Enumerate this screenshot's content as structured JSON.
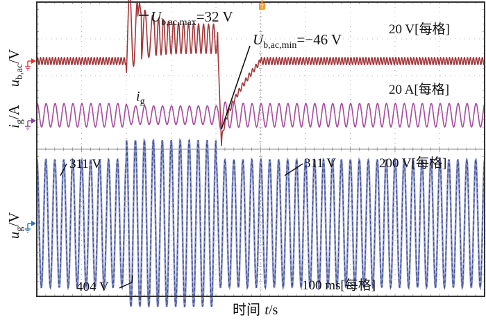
{
  "chart_data": {
    "type": "line",
    "title": "",
    "xlabel": "时间 t/s",
    "time_scale": "100 ms[每格]",
    "x_divisions": 10,
    "y_divisions": 8,
    "grid": true,
    "trigger_marker": "T",
    "colors": {
      "u_b_ac": "#a3373a",
      "i_g": "#a54c9c",
      "u_g": "#3f4d94",
      "u_b_ac_marker": "#e8322b",
      "i_g_marker": "#8a3f99",
      "u_g_marker": "#2a73b8",
      "trigger": "#f0a030",
      "frame": "#333333",
      "grid": "#9a9a9a"
    },
    "series": [
      {
        "name": "u_b,ac",
        "ylabel": "u_b,ac/V",
        "ylabel_main": "u",
        "ylabel_sub": "b,ac",
        "ylabel_unit": "/V",
        "scale": "20 V[每格]",
        "steady_ripple_V": 2,
        "disturbance_start_div": 2.0,
        "disturbance_end_div": 4.0,
        "recovery_end_div": 5.0,
        "max_V": 32,
        "min_V": -46
      },
      {
        "name": "i_g",
        "ylabel": "i_g/A",
        "ylabel_main": "i",
        "ylabel_sub": "g",
        "ylabel_unit": "/A",
        "scale": "20 A[每格]",
        "trace_label_main": "i",
        "trace_label_sub": "g",
        "cycles_shown": 50
      },
      {
        "name": "u_g",
        "ylabel": "u_g/V",
        "ylabel_main": "u",
        "ylabel_sub": "g",
        "ylabel_unit": "/V",
        "scale": "200 V[每格]",
        "normal_peak_V": 311,
        "swell_peak_V": 404,
        "swell_start_div": 2.0,
        "swell_end_div": 4.0,
        "cycles_shown": 50
      }
    ],
    "annotations": {
      "max_main": "U",
      "max_sub": "b,ac,max",
      "max_value": "=32 V",
      "min_main": "U",
      "min_sub": "b,ac,min",
      "min_value": "=−46 V",
      "ug_normal_left": "311 V",
      "ug_normal_right": "311 V",
      "ug_swell": "404 V"
    },
    "xlabel_cn": "时间 ",
    "xlabel_var": "t",
    "xlabel_unit": "/s"
  }
}
